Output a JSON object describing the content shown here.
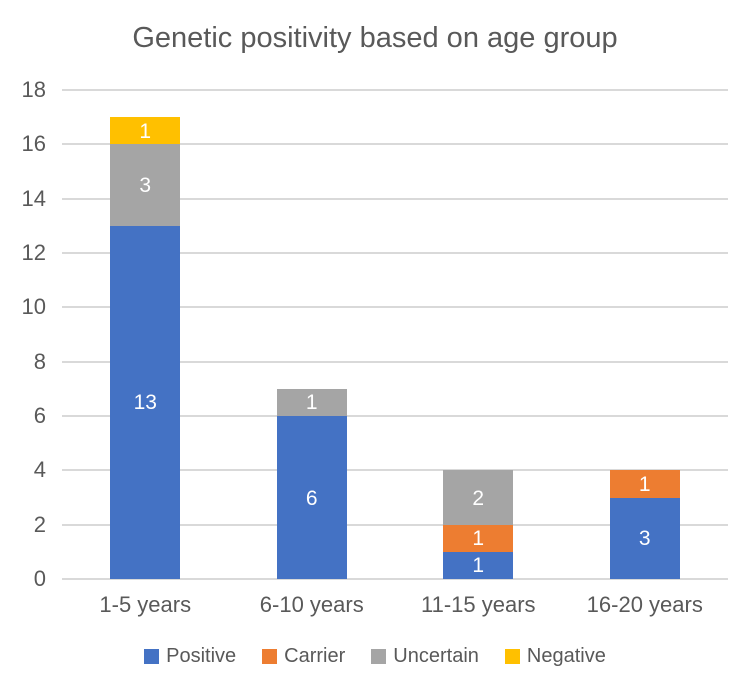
{
  "chart_data": {
    "type": "bar",
    "stacked": true,
    "title": "Genetic positivity based on age group",
    "categories": [
      "1-5 years",
      "6-10 years",
      "11-15 years",
      "16-20 years"
    ],
    "series": [
      {
        "name": "Positive",
        "color": "#4472C4",
        "values": [
          13,
          6,
          1,
          3
        ]
      },
      {
        "name": "Carrier",
        "color": "#ED7D31",
        "values": [
          0,
          0,
          1,
          1
        ]
      },
      {
        "name": "Uncertain",
        "color": "#A5A5A5",
        "values": [
          3,
          1,
          2,
          0
        ]
      },
      {
        "name": "Negative",
        "color": "#FFC000",
        "values": [
          1,
          0,
          0,
          0
        ]
      }
    ],
    "totals": [
      17,
      7,
      4,
      4
    ],
    "data_labels": "shown on non-zero segments, white text",
    "xlabel": "",
    "ylabel": "",
    "ylim": [
      0,
      18
    ],
    "ytick_step": 2,
    "ytick_labels": [
      "0",
      "2",
      "4",
      "6",
      "8",
      "10",
      "12",
      "14",
      "16",
      "18"
    ],
    "grid": true,
    "gridline_color": "#D9D9D9",
    "text_color": "#595959",
    "legend_position": "bottom",
    "legend_entries": [
      "Positive",
      "Carrier",
      "Uncertain",
      "Negative"
    ]
  }
}
